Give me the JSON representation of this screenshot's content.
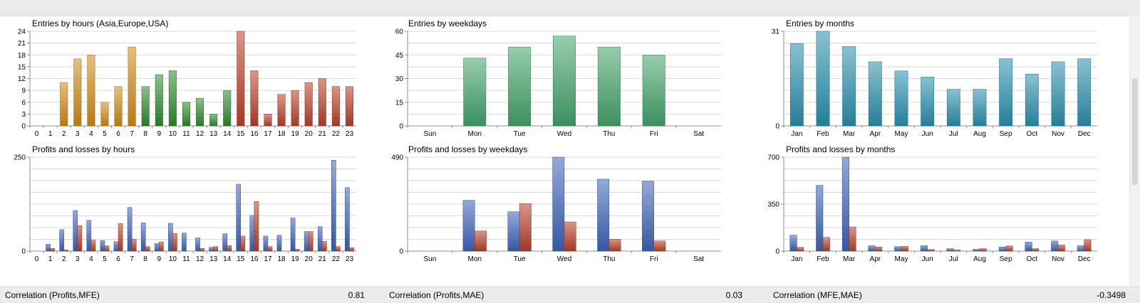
{
  "colors": {
    "grid": "#d7d7d7",
    "axis": "#8c8c8c",
    "asia": "#cf8a17",
    "europe": "#2f8a2f",
    "usa": "#b8412b",
    "weekday": "#43a46a",
    "month": "#2a8fae",
    "profit": "#3f63b8",
    "loss": "#b7402a"
  },
  "chart_data": [
    {
      "id": "entries-hours",
      "type": "bar",
      "title": "Entries by hours (Asia,Europe,USA)",
      "categories": [
        "0",
        "1",
        "2",
        "3",
        "4",
        "5",
        "6",
        "7",
        "8",
        "9",
        "10",
        "11",
        "12",
        "13",
        "14",
        "15",
        "16",
        "17",
        "18",
        "19",
        "20",
        "21",
        "22",
        "23"
      ],
      "values": [
        0,
        0,
        11,
        17,
        18,
        6,
        10,
        20,
        10,
        13,
        14,
        6,
        7,
        3,
        9,
        24,
        14,
        3,
        8,
        9,
        11,
        12,
        10,
        10
      ],
      "ylim": [
        0,
        24
      ],
      "yticks": [
        "0",
        "3",
        "6",
        "9",
        "12",
        "15",
        "18",
        "21",
        "24"
      ],
      "grid": true
    },
    {
      "id": "entries-weekdays",
      "type": "bar",
      "title": "Entries by weekdays",
      "categories": [
        "Sun",
        "Mon",
        "Tue",
        "Wed",
        "Thu",
        "Fri",
        "Sat"
      ],
      "values": [
        0,
        43,
        50,
        57,
        50,
        45,
        0
      ],
      "ylim": [
        0,
        60
      ],
      "yticks": [
        "0",
        "15",
        "30",
        "45",
        "60"
      ],
      "grid": true
    },
    {
      "id": "entries-months",
      "type": "bar",
      "title": "Entries by months",
      "categories": [
        "Jan",
        "Feb",
        "Mar",
        "Apr",
        "May",
        "Jun",
        "Jul",
        "Aug",
        "Sep",
        "Oct",
        "Nov",
        "Dec"
      ],
      "values": [
        27,
        31,
        26,
        21,
        18,
        16,
        12,
        12,
        22,
        17,
        21,
        22
      ],
      "ylim": [
        0,
        31
      ],
      "yticks": [
        "0",
        "31"
      ],
      "grid": true
    },
    {
      "id": "pl-hours",
      "type": "bar",
      "title": "Profits and losses by hours",
      "categories": [
        "0",
        "1",
        "2",
        "3",
        "4",
        "5",
        "6",
        "7",
        "8",
        "9",
        "10",
        "11",
        "12",
        "13",
        "14",
        "15",
        "16",
        "17",
        "18",
        "19",
        "20",
        "21",
        "22",
        "23"
      ],
      "series": [
        {
          "values": [
            0,
            18,
            57,
            108,
            82,
            28,
            25,
            116,
            75,
            20,
            74,
            48,
            35,
            10,
            46,
            178,
            95,
            40,
            42,
            88,
            52,
            65,
            242,
            169
          ]
        },
        {
          "values": [
            0,
            7,
            3,
            68,
            29,
            14,
            73,
            32,
            12,
            24,
            47,
            0,
            7,
            12,
            15,
            40,
            132,
            12,
            0,
            5,
            52,
            26,
            12,
            9
          ]
        }
      ],
      "ylim": [
        0,
        250
      ],
      "yticks": [
        "0",
        "250"
      ],
      "grid": true
    },
    {
      "id": "pl-weekdays",
      "type": "bar",
      "title": "Profits and losses by weekdays",
      "categories": [
        "Sun",
        "Mon",
        "Tue",
        "Wed",
        "Thu",
        "Fri",
        "Sat"
      ],
      "series": [
        {
          "values": [
            0,
            265,
            205,
            490,
            375,
            365,
            0
          ]
        },
        {
          "values": [
            0,
            105,
            248,
            152,
            62,
            53,
            0
          ]
        }
      ],
      "ylim": [
        0,
        490
      ],
      "yticks": [
        "0",
        "490"
      ],
      "grid": true
    },
    {
      "id": "pl-months",
      "type": "bar",
      "title": "Profits and losses by months",
      "categories": [
        "Jan",
        "Feb",
        "Mar",
        "Apr",
        "May",
        "Jun",
        "Jul",
        "Aug",
        "Sep",
        "Oct",
        "Nov",
        "Dec"
      ],
      "series": [
        {
          "values": [
            118,
            490,
            700,
            40,
            33,
            40,
            18,
            13,
            30,
            67,
            75,
            40
          ]
        },
        {
          "values": [
            28,
            102,
            180,
            30,
            35,
            12,
            8,
            18,
            38,
            18,
            45,
            85
          ]
        }
      ],
      "ylim": [
        0,
        700
      ],
      "yticks": [
        "0",
        "350",
        "700"
      ],
      "grid": true
    }
  ],
  "correlations": [
    {
      "label": "Correlation (Profits,MFE)",
      "value": "0.81"
    },
    {
      "label": "Correlation (Profits,MAE)",
      "value": "0.03"
    },
    {
      "label": "Correlation (MFE,MAE)",
      "value": "-0.3498"
    }
  ]
}
